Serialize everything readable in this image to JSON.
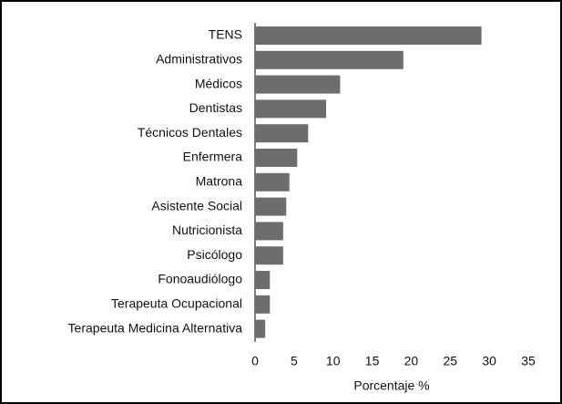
{
  "chart_data": {
    "type": "barh",
    "categories": [
      "TENS",
      "Administrativos",
      "Médicos",
      "Dentistas",
      "Técnicos Dentales",
      "Enfermera",
      "Matrona",
      "Asistente Social",
      "Nutricionista",
      "Psicólogo",
      "Fonoaudiólogo",
      "Terapeuta Ocupacional",
      "Terapeuta Medicina Alternativa"
    ],
    "values": [
      29.0,
      19.0,
      10.9,
      9.1,
      6.8,
      5.4,
      4.4,
      4.0,
      3.6,
      3.6,
      1.9,
      1.9,
      1.3
    ],
    "color": "#6d6d6f",
    "xlabel": "Porcentaje %",
    "xlim": [
      0,
      35
    ],
    "xticks": [
      0,
      5,
      10,
      15,
      20,
      25,
      30,
      35
    ]
  }
}
